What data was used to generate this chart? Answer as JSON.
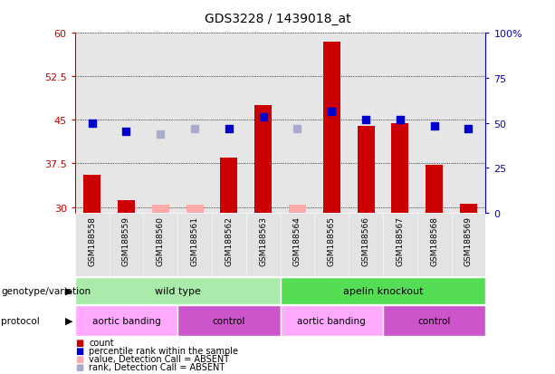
{
  "title": "GDS3228 / 1439018_at",
  "samples": [
    "GSM188558",
    "GSM188559",
    "GSM188560",
    "GSM188561",
    "GSM188562",
    "GSM188563",
    "GSM188564",
    "GSM188565",
    "GSM188566",
    "GSM188567",
    "GSM188568",
    "GSM188569"
  ],
  "ylim_left": [
    29,
    60
  ],
  "ylim_right": [
    0,
    100
  ],
  "yticks_left": [
    30,
    37.5,
    45,
    52.5,
    60
  ],
  "yticks_right": [
    0,
    25,
    50,
    75,
    100
  ],
  "bar_values": [
    35.5,
    31.2,
    30.4,
    30.4,
    38.5,
    47.5,
    30.4,
    58.5,
    44.0,
    44.5,
    37.2,
    30.6
  ],
  "bar_absent": [
    false,
    false,
    true,
    true,
    false,
    false,
    true,
    false,
    false,
    false,
    false,
    false
  ],
  "rank_values": [
    44.5,
    43.0,
    42.5,
    43.5,
    43.5,
    45.5,
    43.5,
    46.5,
    45.0,
    45.0,
    44.0,
    43.5
  ],
  "rank_absent": [
    false,
    false,
    true,
    true,
    false,
    false,
    true,
    false,
    false,
    false,
    false,
    false
  ],
  "bar_color_present": "#cc0000",
  "bar_color_absent": "#ffaaaa",
  "rank_color_present": "#0000cc",
  "rank_color_absent": "#aaaacc",
  "bar_width": 0.5,
  "rank_marker_size": 35,
  "genotype_groups": [
    {
      "label": "wild type",
      "start": 0,
      "end": 6,
      "color": "#aaeaaa"
    },
    {
      "label": "apelin knockout",
      "start": 6,
      "end": 12,
      "color": "#55dd55"
    }
  ],
  "protocol_groups": [
    {
      "label": "aortic banding",
      "start": 0,
      "end": 3,
      "color": "#ffaaff"
    },
    {
      "label": "control",
      "start": 3,
      "end": 6,
      "color": "#cc55cc"
    },
    {
      "label": "aortic banding",
      "start": 6,
      "end": 9,
      "color": "#ffaaff"
    },
    {
      "label": "control",
      "start": 9,
      "end": 12,
      "color": "#cc55cc"
    }
  ],
  "legend_items": [
    {
      "label": "count",
      "color": "#cc0000"
    },
    {
      "label": "percentile rank within the sample",
      "color": "#0000cc"
    },
    {
      "label": "value, Detection Call = ABSENT",
      "color": "#ffaaaa"
    },
    {
      "label": "rank, Detection Call = ABSENT",
      "color": "#aaaacc"
    }
  ],
  "left_label_color": "#cc0000",
  "right_label_color": "#0000cc",
  "col_bg_color": "#c8c8c8"
}
